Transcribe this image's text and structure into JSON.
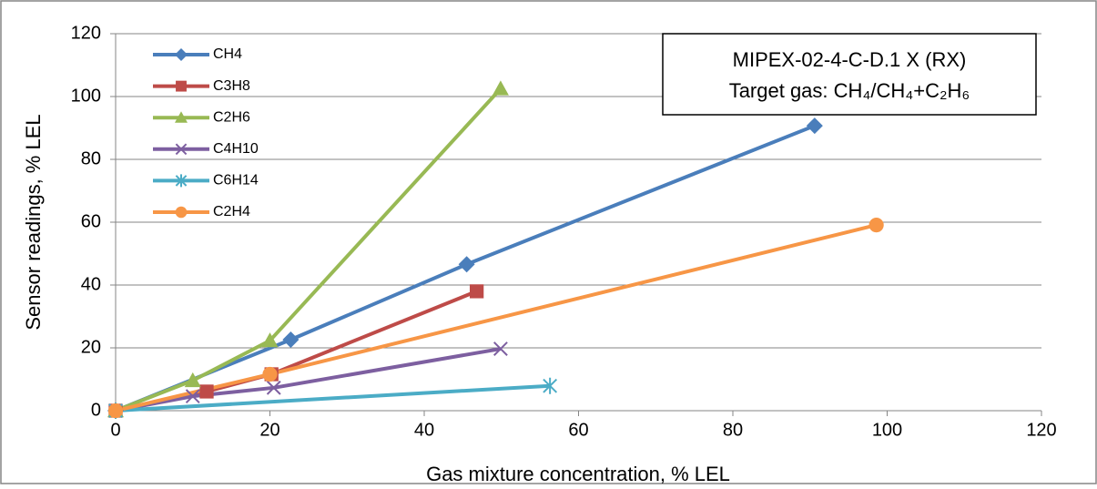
{
  "chart_data": {
    "type": "line",
    "x_label": "Gas mixture concentration, % LEL",
    "y_label": "Sensor readings, % LEL",
    "annotation": [
      "MIPEX-02-4-C-D.1 X (RX)",
      "Target gas: CH₄/CH₄+C₂H₆"
    ],
    "xlim": [
      0,
      120
    ],
    "xticks": [
      0,
      20,
      40,
      60,
      80,
      100,
      120
    ],
    "ylim": [
      0,
      120
    ],
    "yticks": [
      0,
      20,
      40,
      60,
      80,
      100,
      120
    ],
    "grid": true,
    "legend": "top-left",
    "series": [
      {
        "name": "CH4",
        "color": "#4a7ebb",
        "marker": "diamond",
        "x": [
          0,
          22.7,
          45.5,
          90.6
        ],
        "y": [
          0,
          22.6,
          46.6,
          90.7
        ]
      },
      {
        "name": "C3H8",
        "color": "#be4b48",
        "marker": "square",
        "x": [
          0,
          11.8,
          20.2,
          46.8
        ],
        "y": [
          0,
          6.1,
          11.6,
          38
        ]
      },
      {
        "name": "C2H6",
        "color": "#98b954",
        "marker": "triangle",
        "x": [
          0,
          10,
          20,
          49.9
        ],
        "y": [
          0,
          9.6,
          22.3,
          102.5
        ]
      },
      {
        "name": "C4H10",
        "color": "#7d5fa0",
        "marker": "x",
        "x": [
          0,
          10,
          20.5,
          49.9
        ],
        "y": [
          0,
          4.6,
          7.3,
          19.7
        ]
      },
      {
        "name": "C6H14",
        "color": "#4bacc6",
        "marker": "star",
        "x": [
          0,
          56.3
        ],
        "y": [
          0,
          7.9
        ]
      },
      {
        "name": "C2H4",
        "color": "#f79646",
        "marker": "circle",
        "x": [
          0,
          20,
          98.6
        ],
        "y": [
          0,
          11.6,
          59.1
        ]
      }
    ]
  }
}
